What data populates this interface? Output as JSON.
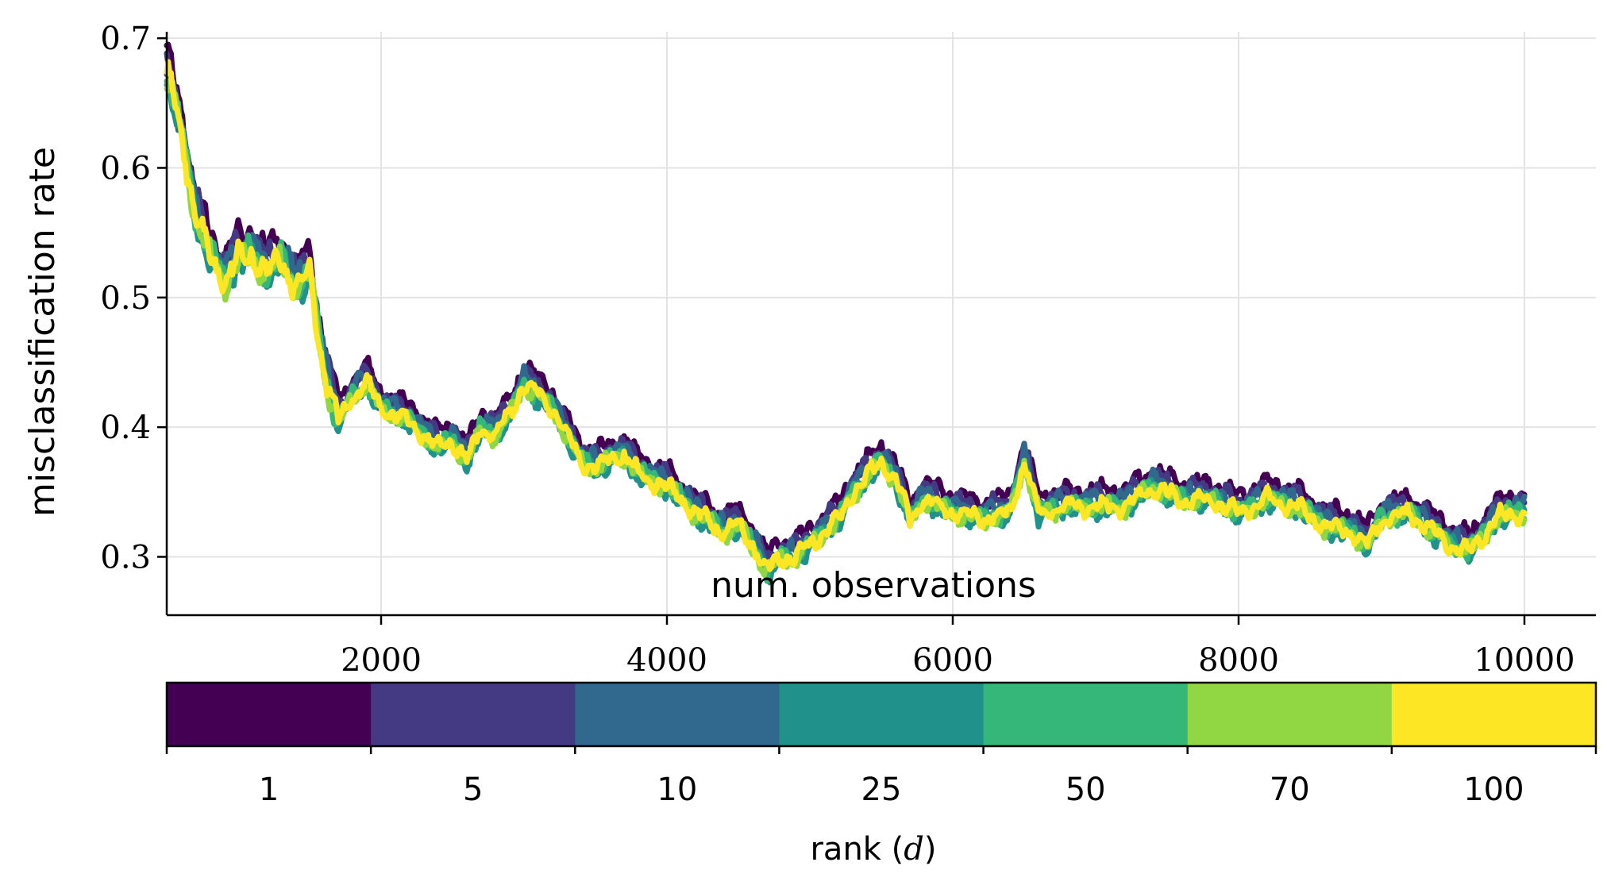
{
  "chart_data": {
    "type": "line",
    "xlabel": "num. observations",
    "ylabel": "misclassification rate",
    "xlim": [
      500,
      10500
    ],
    "ylim": [
      0.255,
      0.705
    ],
    "x_ticks": [
      2000,
      4000,
      6000,
      8000,
      10000
    ],
    "y_ticks": [
      0.3,
      0.4,
      0.5,
      0.6,
      0.7
    ],
    "y_tick_labels": [
      "0.3",
      "0.4",
      "0.5",
      "0.6",
      "0.7"
    ],
    "grid": true,
    "base_curve": {
      "x": [
        500,
        600,
        700,
        800,
        900,
        1000,
        1100,
        1200,
        1300,
        1400,
        1500,
        1600,
        1700,
        1800,
        1900,
        2000,
        2200,
        2400,
        2500,
        2600,
        2700,
        2800,
        2900,
        3000,
        3200,
        3400,
        3500,
        3700,
        3800,
        3900,
        4000,
        4100,
        4200,
        4400,
        4500,
        4600,
        4700,
        4800,
        4900,
        5000,
        5200,
        5300,
        5500,
        5600,
        5700,
        5800,
        5900,
        6000,
        6200,
        6400,
        6500,
        6600,
        6800,
        7000,
        7200,
        7400,
        7600,
        7800,
        8000,
        8200,
        8400,
        8600,
        8800,
        8900,
        9000,
        9200,
        9300,
        9500,
        9600,
        9700,
        9800,
        9900,
        10000
      ],
      "y": [
        0.675,
        0.63,
        0.565,
        0.535,
        0.515,
        0.53,
        0.535,
        0.52,
        0.53,
        0.51,
        0.52,
        0.445,
        0.405,
        0.425,
        0.435,
        0.415,
        0.405,
        0.385,
        0.39,
        0.375,
        0.4,
        0.395,
        0.41,
        0.435,
        0.415,
        0.375,
        0.37,
        0.38,
        0.365,
        0.36,
        0.355,
        0.345,
        0.335,
        0.32,
        0.325,
        0.31,
        0.29,
        0.3,
        0.3,
        0.31,
        0.33,
        0.35,
        0.375,
        0.36,
        0.33,
        0.345,
        0.34,
        0.335,
        0.33,
        0.335,
        0.375,
        0.335,
        0.34,
        0.34,
        0.34,
        0.355,
        0.345,
        0.345,
        0.335,
        0.345,
        0.34,
        0.325,
        0.32,
        0.31,
        0.33,
        0.335,
        0.325,
        0.31,
        0.305,
        0.315,
        0.33,
        0.335,
        0.335
      ]
    },
    "series": [
      {
        "name": "1",
        "color": "#440154",
        "offset": 0.012
      },
      {
        "name": "5",
        "color": "#443983",
        "offset": 0.008
      },
      {
        "name": "10",
        "color": "#31688e",
        "offset": 0.004
      },
      {
        "name": "25",
        "color": "#21918c",
        "offset": -0.003
      },
      {
        "name": "50",
        "color": "#35b779",
        "offset": 0.0
      },
      {
        "name": "70",
        "color": "#90d743",
        "offset": -0.002
      },
      {
        "name": "100",
        "color": "#fde725",
        "offset": -0.001
      }
    ],
    "colorbar": {
      "label": "rank (",
      "label_var": "d",
      "label_close": ")",
      "ticks": [
        "1",
        "5",
        "10",
        "25",
        "50",
        "70",
        "100"
      ],
      "colors": [
        "#440154",
        "#443983",
        "#31688e",
        "#21918c",
        "#35b779",
        "#90d743",
        "#fde725"
      ]
    }
  }
}
